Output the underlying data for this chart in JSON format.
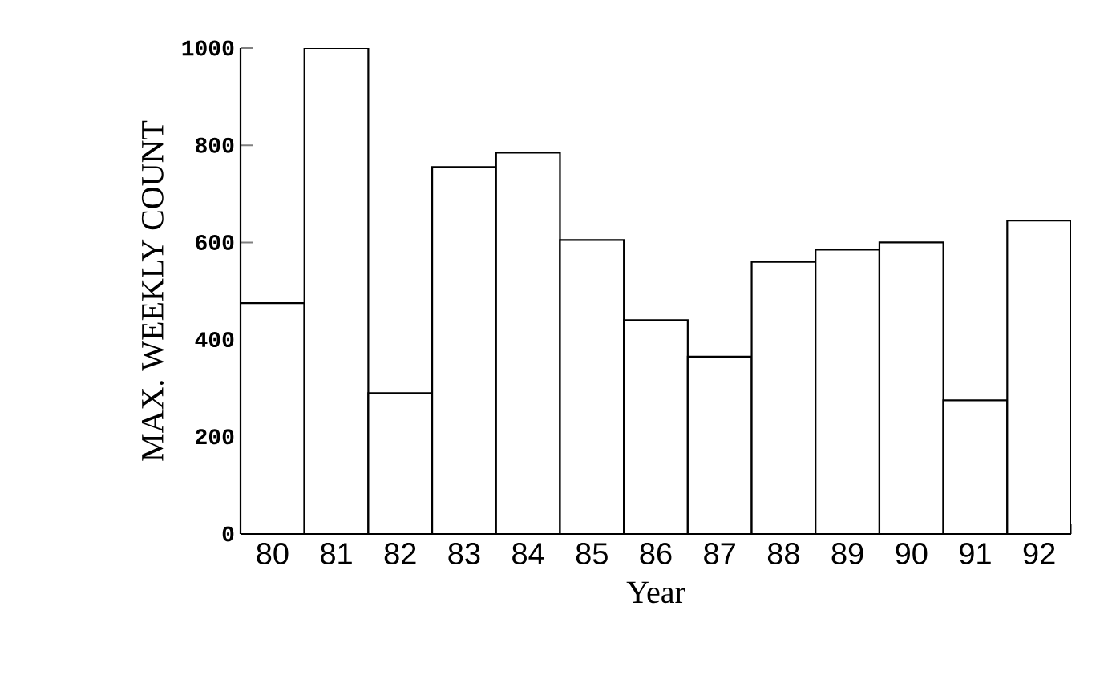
{
  "chart_data": {
    "type": "bar",
    "xlabel": "Year",
    "ylabel": "MAX. WEEKLY COUNT",
    "categories": [
      "80",
      "81",
      "82",
      "83",
      "84",
      "85",
      "86",
      "87",
      "88",
      "89",
      "90",
      "91",
      "92"
    ],
    "values": [
      475,
      1000,
      290,
      755,
      785,
      605,
      440,
      365,
      560,
      585,
      600,
      275,
      645
    ],
    "color": "#ffffff",
    "ylim": [
      0,
      1000
    ],
    "yticks": [
      0,
      200,
      400,
      600,
      800,
      1000
    ]
  }
}
